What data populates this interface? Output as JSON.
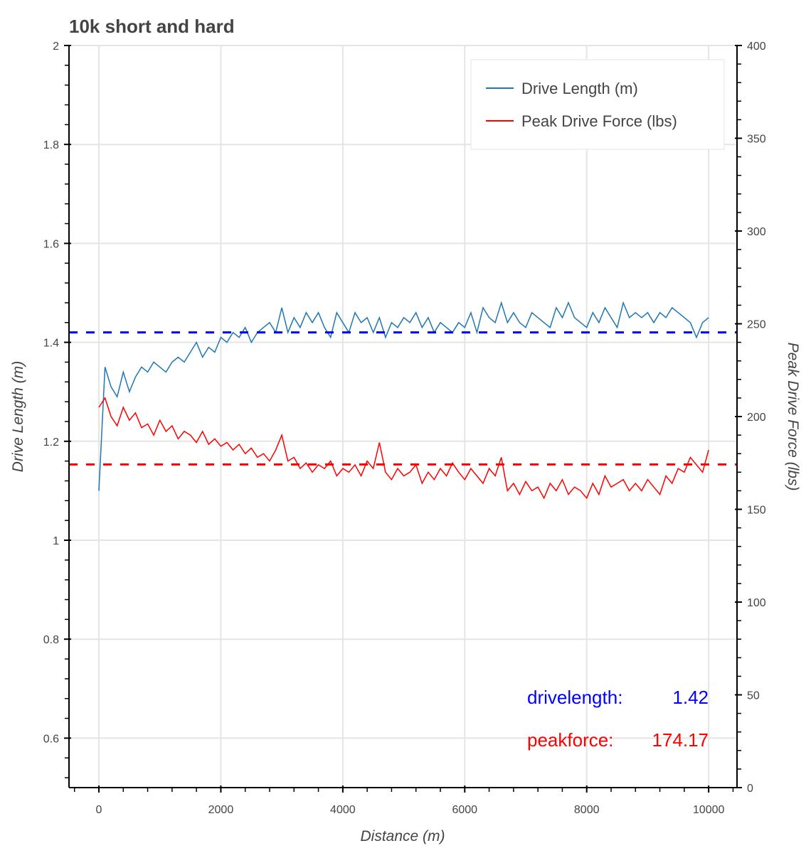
{
  "chart_data": {
    "type": "line",
    "title": "10k short and hard",
    "xlabel": "Distance (m)",
    "ylabel": "Drive Length (m)",
    "y2label": "Peak Drive Force (lbs)",
    "xlim": [
      -490,
      10465
    ],
    "ylim": [
      0.5,
      2.0
    ],
    "y2lim": [
      0,
      400
    ],
    "x_ticks": [
      "0",
      "2000",
      "4000",
      "6000",
      "8000",
      "10000"
    ],
    "y_ticks": [
      "0.6",
      "0.8",
      "1",
      "1.2",
      "1.4",
      "1.6",
      "1.8",
      "2"
    ],
    "y2_ticks": [
      "0",
      "50",
      "100",
      "150",
      "200",
      "250",
      "300",
      "350",
      "400"
    ],
    "grid": true,
    "legend_position": "top-right",
    "colors": {
      "drive_length": "#1f77b4",
      "peak_force": "#ff0000",
      "drive_mean": "#0000ff",
      "force_mean": "#ff0000"
    },
    "x": [
      0,
      100,
      200,
      300,
      400,
      500,
      600,
      700,
      800,
      900,
      1000,
      1100,
      1200,
      1300,
      1400,
      1500,
      1600,
      1700,
      1800,
      1900,
      2000,
      2100,
      2200,
      2300,
      2400,
      2500,
      2600,
      2700,
      2800,
      2900,
      3000,
      3100,
      3200,
      3300,
      3400,
      3500,
      3600,
      3700,
      3800,
      3900,
      4000,
      4100,
      4200,
      4300,
      4400,
      4500,
      4600,
      4700,
      4800,
      4900,
      5000,
      5100,
      5200,
      5300,
      5400,
      5500,
      5600,
      5700,
      5800,
      5900,
      6000,
      6100,
      6200,
      6300,
      6400,
      6500,
      6600,
      6700,
      6800,
      6900,
      7000,
      7100,
      7200,
      7300,
      7400,
      7500,
      7600,
      7700,
      7800,
      7900,
      8000,
      8100,
      8200,
      8300,
      8400,
      8500,
      8600,
      8700,
      8800,
      8900,
      9000,
      9100,
      9200,
      9300,
      9400,
      9500,
      9600,
      9700,
      9800,
      9900,
      10000
    ],
    "series": [
      {
        "name": "Drive Length (m)",
        "axis": "left",
        "values": [
          1.1,
          1.35,
          1.31,
          1.29,
          1.34,
          1.3,
          1.33,
          1.35,
          1.34,
          1.36,
          1.35,
          1.34,
          1.36,
          1.37,
          1.36,
          1.38,
          1.4,
          1.37,
          1.39,
          1.38,
          1.41,
          1.4,
          1.42,
          1.41,
          1.43,
          1.4,
          1.42,
          1.43,
          1.44,
          1.42,
          1.47,
          1.42,
          1.45,
          1.43,
          1.46,
          1.44,
          1.46,
          1.43,
          1.41,
          1.46,
          1.44,
          1.42,
          1.46,
          1.44,
          1.45,
          1.42,
          1.45,
          1.41,
          1.44,
          1.43,
          1.45,
          1.44,
          1.46,
          1.43,
          1.45,
          1.42,
          1.44,
          1.43,
          1.42,
          1.44,
          1.43,
          1.46,
          1.42,
          1.47,
          1.45,
          1.44,
          1.48,
          1.44,
          1.46,
          1.44,
          1.43,
          1.46,
          1.45,
          1.44,
          1.43,
          1.47,
          1.45,
          1.48,
          1.45,
          1.44,
          1.43,
          1.46,
          1.44,
          1.47,
          1.45,
          1.43,
          1.48,
          1.45,
          1.46,
          1.45,
          1.46,
          1.44,
          1.46,
          1.45,
          1.47,
          1.46,
          1.45,
          1.44,
          1.41,
          1.44,
          1.45
        ]
      },
      {
        "name": "Peak Drive Force (lbs)",
        "axis": "right",
        "values": [
          205,
          210,
          200,
          195,
          205,
          198,
          202,
          194,
          196,
          190,
          198,
          192,
          195,
          188,
          192,
          190,
          186,
          192,
          185,
          188,
          184,
          186,
          182,
          185,
          180,
          183,
          178,
          180,
          176,
          182,
          190,
          176,
          178,
          172,
          175,
          170,
          174,
          172,
          176,
          168,
          172,
          170,
          174,
          168,
          176,
          172,
          186,
          170,
          166,
          172,
          168,
          170,
          174,
          164,
          170,
          166,
          172,
          168,
          175,
          170,
          166,
          172,
          168,
          164,
          172,
          168,
          178,
          160,
          164,
          158,
          165,
          160,
          162,
          156,
          164,
          160,
          166,
          158,
          162,
          160,
          156,
          164,
          158,
          168,
          162,
          164,
          166,
          160,
          164,
          160,
          166,
          162,
          158,
          168,
          164,
          172,
          170,
          178,
          174,
          170,
          182
        ]
      }
    ],
    "reference_lines": [
      {
        "label": "drivelength:",
        "value_text": "1.42",
        "value": 1.42,
        "axis": "left"
      },
      {
        "label": "peakforce:",
        "value_text": "174.17",
        "value": 174.17,
        "axis": "right"
      }
    ]
  }
}
